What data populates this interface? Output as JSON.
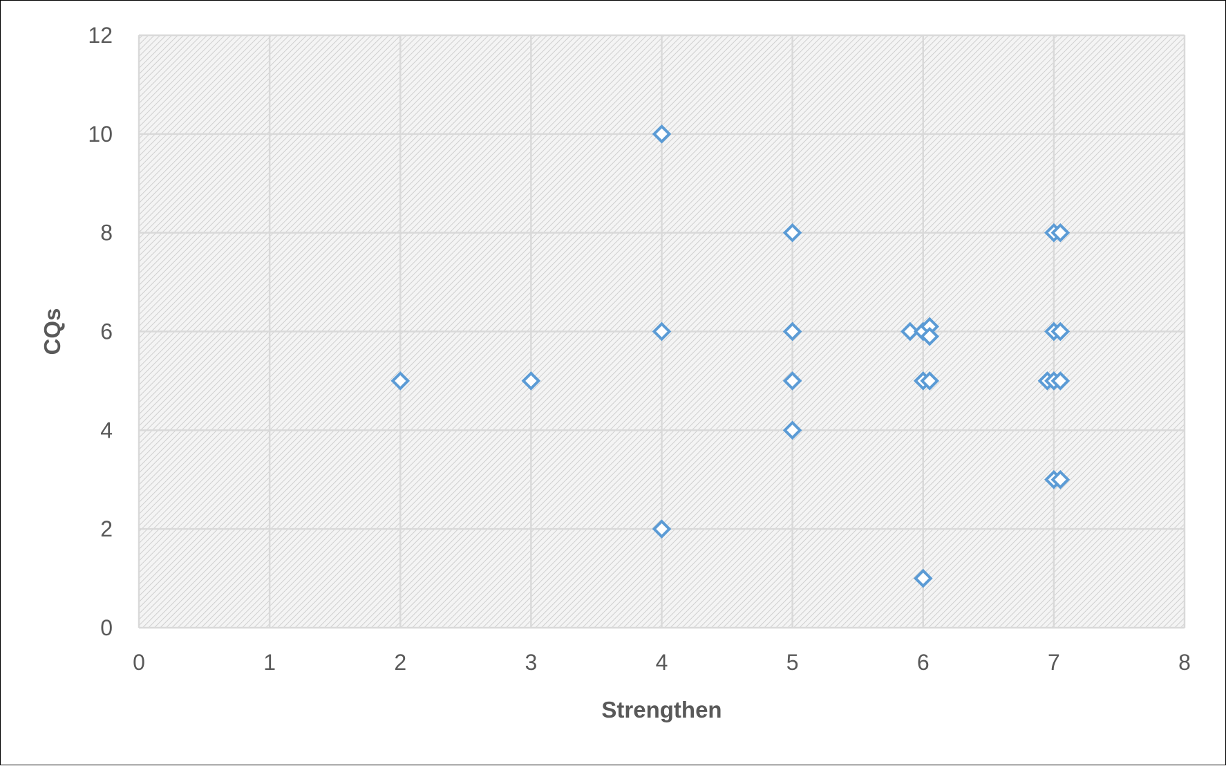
{
  "chart_data": {
    "type": "scatter",
    "title": "",
    "xlabel": "Strengthen",
    "ylabel": "CQs",
    "xlim": [
      0,
      8
    ],
    "ylim": [
      0,
      12
    ],
    "x_ticks": [
      0,
      1,
      2,
      3,
      4,
      5,
      6,
      7,
      8
    ],
    "y_ticks": [
      0,
      2,
      4,
      6,
      8,
      10,
      12
    ],
    "grid": true,
    "legend": "none",
    "marker": "diamond-open",
    "marker_color": "#5b9bd5",
    "plot_background": "hatched-light-gray",
    "series": [
      {
        "x": [
          4,
          5,
          7,
          7.05,
          4,
          5,
          5.9,
          6,
          6.05,
          6.05,
          7,
          7.05,
          2,
          3,
          5,
          6,
          6.05,
          6.95,
          7,
          7.05,
          5,
          7,
          7.05,
          4,
          6
        ],
        "y": [
          10,
          8,
          8,
          8,
          6,
          6,
          6,
          6,
          6.1,
          5.9,
          6,
          6,
          5,
          5,
          5,
          5,
          5,
          5,
          5,
          5,
          4,
          3,
          3,
          2,
          1
        ]
      }
    ]
  }
}
